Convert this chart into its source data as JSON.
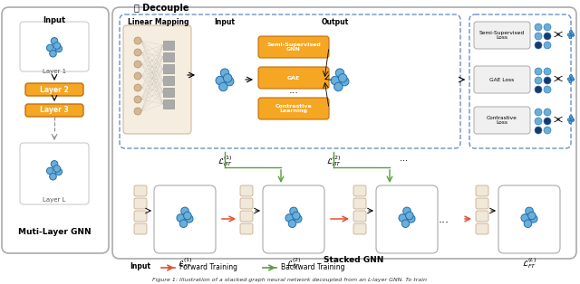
{
  "title": "Figure 1: Illustration of a stacked graph neural network decoupled from an L-layer GNN. To train",
  "bg_color": "#ffffff",
  "decouple_text": "Decouple",
  "left_panel_title": "Muti-Layer GNN",
  "right_panel_title": "Stacked GNN",
  "node_color": "#6baed6",
  "node_edge_color": "#2171b5",
  "orange_color": "#f5a623",
  "orange_dark": "#e08010",
  "green_arrow": "#5a9e3c",
  "red_arrow": "#e05030",
  "gray_box": "#d3d3d3",
  "light_blue_bg": "#e8f0f8",
  "dashed_border": "#7090c0",
  "panel_bg": "#f5f5f5"
}
